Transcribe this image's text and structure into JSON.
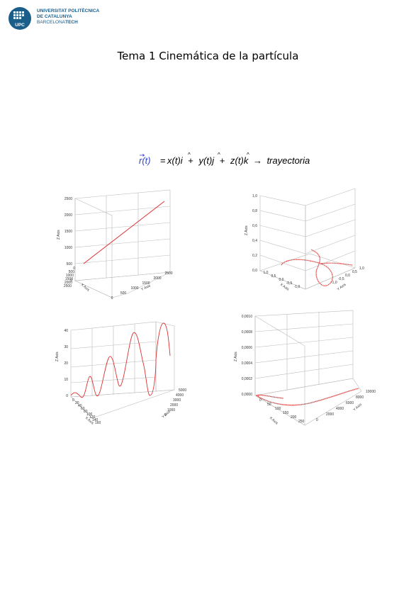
{
  "logo": {
    "line1": "UNIVERSITAT POLITÈCNICA",
    "line2": "DE CATALUNYA",
    "line3_a": "BARCELONA",
    "line3_b": "TECH",
    "mark_text": "UPC",
    "color": "#1b5e8a"
  },
  "page_title": "Tema 1  Cinemática de la partícula",
  "formula": {
    "lhs": "r(t)",
    "rhs_terms": [
      "x(t)",
      "i",
      "+",
      "y(t)",
      "j",
      "+",
      "z(t)",
      "k"
    ],
    "arrow": "→",
    "result": "trayectoria",
    "lhs_color": "#3344cc"
  },
  "chart_data": [
    {
      "type": "line",
      "description_kind": "3d",
      "zlabel": "Z Axis",
      "xlabel": "X Axis",
      "ylabel": "Y Axis",
      "z_ticks": [
        "2500",
        "2000",
        "1500",
        "1000",
        "500",
        "0"
      ],
      "x_ticks": [
        "0",
        "500",
        "1000",
        "1500",
        "2000",
        "2500"
      ],
      "y_ticks": [
        "0",
        "500",
        "1000",
        "1500",
        "2000",
        "2500"
      ],
      "series_color": "#e03030"
    },
    {
      "type": "line",
      "description_kind": "3d",
      "zlabel": "Z Axis",
      "xlabel": "X Axis",
      "ylabel": "Y Axis",
      "z_ticks": [
        "1,0",
        "0,8",
        "0,6",
        "0,4",
        "0,2",
        "0,0"
      ],
      "x_ticks": [
        "1,0",
        "0,5",
        "0,0",
        "-0,5",
        "-1,0"
      ],
      "y_ticks": [
        "1,0",
        "0,5",
        "0,0",
        "-0,5",
        "-1,0"
      ],
      "series_color": "#e03030"
    },
    {
      "type": "line",
      "description_kind": "3d",
      "zlabel": "Z Axis",
      "xlabel": "X Axis",
      "ylabel": "Y Axis",
      "z_ticks": [
        "40",
        "30",
        "20",
        "10",
        "0"
      ],
      "x_ticks": [
        "0",
        "20",
        "40",
        "60",
        "80",
        "100",
        "120",
        "140",
        "160"
      ],
      "y_ticks": [
        "5000",
        "4000",
        "3000",
        "2000",
        "1000",
        "0"
      ],
      "series_color": "#e03030"
    },
    {
      "type": "line",
      "description_kind": "3d",
      "zlabel": "Z Axis",
      "xlabel": "X Axis",
      "ylabel": "Y Axis",
      "z_ticks": [
        "0,0010",
        "0,0008",
        "0,0006",
        "0,0004",
        "0,0002",
        "0,0000"
      ],
      "x_ticks": [
        "0",
        "50",
        "100",
        "150",
        "200",
        "250"
      ],
      "y_ticks": [
        "10000",
        "8000",
        "6000",
        "4000",
        "2000",
        "0"
      ],
      "series_color": "#e03030"
    }
  ]
}
